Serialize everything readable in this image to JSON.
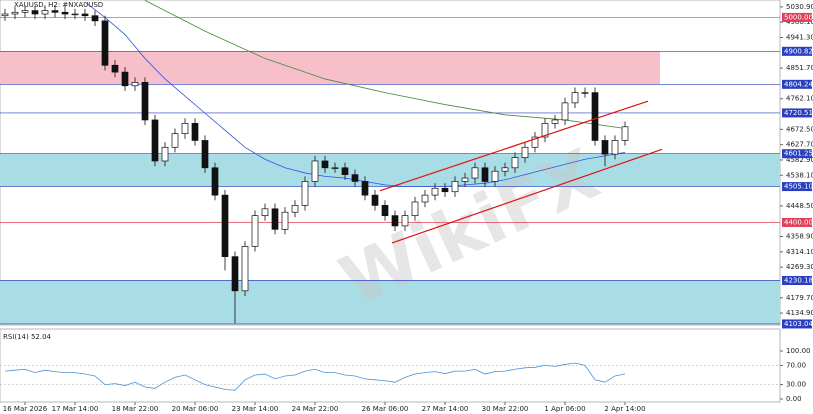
{
  "chart_data": {
    "type": "candlestick",
    "title": "XAUUSD, H2:  #NXAUUSD",
    "watermark": "WikiFX",
    "categories": [
      null,
      null,
      "16 Mar 2026",
      null,
      null,
      null,
      null,
      "17 Mar 14:00",
      null,
      null,
      null,
      null,
      null,
      "18 Mar 22:00",
      null,
      null,
      null,
      null,
      null,
      "20 Mar 06:00",
      null,
      null,
      null,
      null,
      null,
      "23 Mar 14:00",
      null,
      null,
      null,
      null,
      null,
      "24 Mar 22:00",
      null,
      null,
      null,
      null,
      null,
      null,
      "26 Mar 06:00",
      null,
      null,
      null,
      null,
      null,
      "27 Mar 14:00",
      null,
      null,
      null,
      null,
      null,
      "30 Mar 22:00",
      null,
      null,
      null,
      null,
      null,
      "1 Apr 06:00",
      null,
      null,
      null,
      null,
      null,
      "2 Apr 14:00"
    ],
    "open": [
      5005,
      5010,
      5015,
      5020,
      5010,
      5020,
      5015,
      5010,
      5010,
      5005,
      4990,
      4860,
      4840,
      4800,
      4810,
      4700,
      4580,
      4620,
      4660,
      4690,
      4640,
      4560,
      4480,
      4300,
      4200,
      4330,
      4420,
      4440,
      4380,
      4430,
      4450,
      4520,
      4580,
      4560,
      4560,
      4540,
      4520,
      4480,
      4450,
      4420,
      4390,
      4420,
      4460,
      4480,
      4500,
      4490,
      4520,
      4530,
      4560,
      4520,
      4550,
      4560,
      4590,
      4620,
      4650,
      4690,
      4700,
      4750,
      4780,
      4780,
      4640,
      4600,
      4640
    ],
    "high": [
      5025,
      5030,
      5035,
      5035,
      5035,
      5035,
      5030,
      5025,
      5025,
      5020,
      5005,
      4875,
      4855,
      4825,
      4825,
      4715,
      4635,
      4675,
      4705,
      4705,
      4655,
      4575,
      4495,
      4315,
      4345,
      4435,
      4455,
      4455,
      4445,
      4465,
      4535,
      4595,
      4595,
      4575,
      4575,
      4555,
      4535,
      4495,
      4465,
      4435,
      4435,
      4475,
      4495,
      4515,
      4515,
      4535,
      4545,
      4575,
      4575,
      4565,
      4575,
      4605,
      4635,
      4665,
      4705,
      4715,
      4765,
      4795,
      4795,
      4795,
      4655,
      4655,
      4695
    ],
    "low": [
      4990,
      4995,
      5000,
      4995,
      4995,
      5000,
      4995,
      4995,
      4990,
      4975,
      4845,
      4825,
      4785,
      4785,
      4685,
      4565,
      4565,
      4605,
      4645,
      4625,
      4545,
      4465,
      4260,
      4105,
      4185,
      4315,
      4405,
      4365,
      4365,
      4415,
      4435,
      4505,
      4545,
      4545,
      4525,
      4505,
      4465,
      4435,
      4405,
      4375,
      4375,
      4405,
      4445,
      4465,
      4475,
      4475,
      4505,
      4515,
      4505,
      4505,
      4535,
      4545,
      4575,
      4605,
      4635,
      4675,
      4685,
      4735,
      4765,
      4625,
      4565,
      4585,
      4625
    ],
    "close": [
      5010,
      5015,
      5020,
      5010,
      5020,
      5015,
      5010,
      5010,
      5005,
      4990,
      4860,
      4840,
      4800,
      4810,
      4700,
      4580,
      4620,
      4660,
      4690,
      4640,
      4560,
      4480,
      4300,
      4200,
      4330,
      4420,
      4440,
      4380,
      4430,
      4450,
      4520,
      4580,
      4560,
      4560,
      4540,
      4520,
      4480,
      4450,
      4420,
      4390,
      4420,
      4460,
      4480,
      4500,
      4490,
      4520,
      4530,
      4560,
      4520,
      4550,
      4560,
      4590,
      4620,
      4650,
      4690,
      4700,
      4750,
      4780,
      4780,
      4640,
      4600,
      4640,
      4680
    ],
    "moving_averages": [
      {
        "color": "#3355dd",
        "x": [
          8,
          10,
          12,
          14,
          16,
          18,
          20,
          22,
          24,
          26,
          28,
          30,
          32,
          34,
          36,
          38,
          40,
          42,
          44,
          46,
          48,
          50,
          52,
          54,
          56,
          58,
          60,
          62
        ],
        "values": [
          5045,
          5000,
          4950,
          4880,
          4820,
          4770,
          4720,
          4670,
          4620,
          4585,
          4560,
          4545,
          4535,
          4530,
          4520,
          4510,
          4505,
          4505,
          4505,
          4510,
          4515,
          4525,
          4540,
          4555,
          4570,
          4585,
          4595,
          4605
        ]
      },
      {
        "color": "#4a8a3a",
        "x": [
          14,
          20,
          26,
          32,
          38,
          44,
          50,
          56,
          62
        ],
        "values": [
          5050,
          4960,
          4880,
          4820,
          4780,
          4745,
          4715,
          4700,
          4675
        ]
      }
    ],
    "trendlines": [
      {
        "color": "#e01010",
        "x": [
          37.5,
          64.3
        ],
        "values": [
          4493,
          4755
        ]
      },
      {
        "color": "#e01010",
        "x": [
          38.7,
          65.7
        ],
        "values": [
          4340,
          4614
        ]
      }
    ],
    "levels": [
      {
        "value": 5000,
        "label": "5000.00",
        "color": "#e0405a"
      },
      {
        "value": 4900.82,
        "label": "4900.82",
        "color": "#2a3fc0"
      },
      {
        "value": 4804.24,
        "label": "4804.24",
        "color": "#2a3fc0"
      },
      {
        "value": 4720.51,
        "label": "4720.51",
        "color": "#2a3fc0"
      },
      {
        "value": 4601.25,
        "label": "4601.25",
        "color": "#2a3fc0"
      },
      {
        "value": 4505.1,
        "label": "4505.10",
        "color": "#2a3fc0"
      },
      {
        "value": 4400,
        "label": "4400.00",
        "color": "#e0405a"
      },
      {
        "value": 4230.18,
        "label": "4230.18",
        "color": "#2a3fc0"
      },
      {
        "value": 4103.04,
        "label": "4103.04",
        "color": "#2a3fc0"
      }
    ],
    "zones": [
      {
        "from": 4804.24,
        "to": 4900.82,
        "color": "#f7bfc9"
      },
      {
        "from": 4505.1,
        "to": 4601.25,
        "color": "#a9dde6"
      },
      {
        "from": 4103.04,
        "to": 4230.18,
        "color": "#a9dde6"
      }
    ],
    "ylim": [
      4100,
      5051
    ],
    "yticks": [
      {
        "value": 5030.9,
        "label": "5030.90"
      },
      {
        "value": 4986.1,
        "label": "4986.10"
      },
      {
        "value": 4941.3,
        "label": "4941.30"
      },
      {
        "value": 4851.7,
        "label": "4851.70"
      },
      {
        "value": 4762.1,
        "label": "4762.10"
      },
      {
        "value": 4672.5,
        "label": "4672.50"
      },
      {
        "value": 4627.7,
        "label": "4627.70"
      },
      {
        "value": 4582.9,
        "label": "4582.90"
      },
      {
        "value": 4538.1,
        "label": "4538.10"
      },
      {
        "value": 4448.5,
        "label": "4448.50"
      },
      {
        "value": 4358.9,
        "label": "4358.90"
      },
      {
        "value": 4314.1,
        "label": "4314.10"
      },
      {
        "value": 4269.3,
        "label": "4269.30"
      },
      {
        "value": 4179.7,
        "label": "4179.70"
      },
      {
        "value": 4134.9,
        "label": "4134.90"
      }
    ],
    "rsi": {
      "label": "RSI(14) 52.04",
      "color": "#4a90d9",
      "values": [
        58,
        60,
        62,
        55,
        60,
        57,
        55,
        55,
        52,
        48,
        30,
        32,
        28,
        35,
        25,
        22,
        35,
        45,
        50,
        40,
        30,
        25,
        20,
        18,
        40,
        50,
        52,
        42,
        48,
        50,
        58,
        62,
        55,
        55,
        50,
        48,
        42,
        40,
        38,
        35,
        45,
        52,
        55,
        57,
        53,
        58,
        58,
        62,
        52,
        57,
        58,
        62,
        65,
        66,
        70,
        68,
        72,
        75,
        70,
        40,
        35,
        48,
        52
      ],
      "ylim": [
        0,
        100
      ],
      "yticks": [
        {
          "value": 100,
          "label": "100.00"
        },
        {
          "value": 70,
          "label": "70.00"
        },
        {
          "value": 30,
          "label": "30.00"
        },
        {
          "value": 0,
          "label": "0.00"
        }
      ]
    }
  }
}
